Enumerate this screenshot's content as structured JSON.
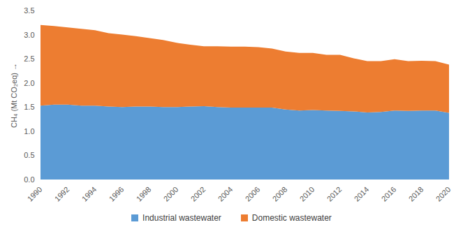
{
  "chart_data": {
    "type": "area",
    "stacked": true,
    "y_label": "CH₄ (Mt CO₂eq)",
    "x": [
      1990,
      1991,
      1992,
      1993,
      1994,
      1995,
      1996,
      1997,
      1998,
      1999,
      2000,
      2001,
      2002,
      2003,
      2004,
      2005,
      2006,
      2007,
      2008,
      2009,
      2010,
      2011,
      2012,
      2013,
      2014,
      2015,
      2016,
      2017,
      2018,
      2019,
      2020
    ],
    "series": [
      {
        "name": "Industrial wastewater",
        "color": "#5b9bd5",
        "values": [
          1.53,
          1.55,
          1.55,
          1.53,
          1.53,
          1.51,
          1.5,
          1.51,
          1.51,
          1.5,
          1.5,
          1.51,
          1.52,
          1.5,
          1.49,
          1.49,
          1.49,
          1.49,
          1.45,
          1.43,
          1.44,
          1.43,
          1.42,
          1.41,
          1.39,
          1.4,
          1.43,
          1.42,
          1.43,
          1.43,
          1.38
        ]
      },
      {
        "name": "Domestic wastewater",
        "color": "#ed7d31",
        "values": [
          1.67,
          1.63,
          1.6,
          1.59,
          1.56,
          1.52,
          1.5,
          1.46,
          1.42,
          1.39,
          1.33,
          1.28,
          1.24,
          1.26,
          1.26,
          1.26,
          1.25,
          1.22,
          1.2,
          1.19,
          1.18,
          1.15,
          1.16,
          1.1,
          1.06,
          1.05,
          1.06,
          1.03,
          1.03,
          1.02,
          1.0
        ]
      }
    ],
    "xlim": [
      1990,
      2020
    ],
    "xticks": [
      1990,
      1992,
      1994,
      1996,
      1998,
      2000,
      2002,
      2004,
      2006,
      2008,
      2010,
      2012,
      2014,
      2016,
      2018,
      2020
    ],
    "ylim": [
      0,
      3.5
    ],
    "yticks": [
      {
        "value": 0,
        "label": "0.0"
      },
      {
        "value": 0.5,
        "label": "0.5"
      },
      {
        "value": 1,
        "label": "1.0"
      },
      {
        "value": 1.5,
        "label": "1.5"
      },
      {
        "value": 2,
        "label": "2.0"
      },
      {
        "value": 2.5,
        "label": "2.5"
      },
      {
        "value": 3,
        "label": "3.0"
      },
      {
        "value": 3.5,
        "label": "3.5"
      }
    ],
    "grid": false,
    "legend": "bottom"
  }
}
